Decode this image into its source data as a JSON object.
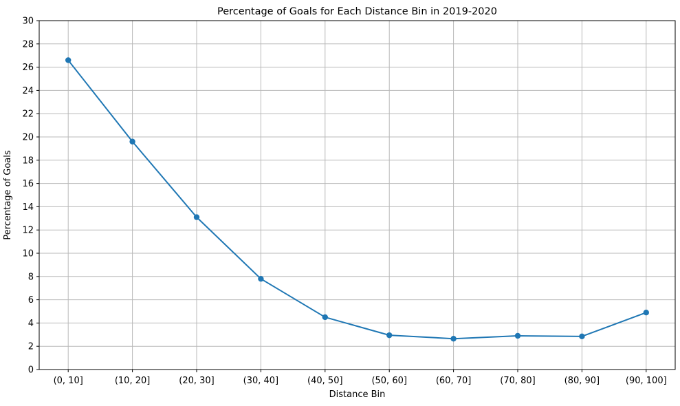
{
  "chart_data": {
    "type": "line",
    "title": "Percentage of Goals for Each Distance Bin in 2019-2020",
    "xlabel": "Distance Bin",
    "ylabel": "Percentage of Goals",
    "categories": [
      "(0, 10]",
      "(10, 20]",
      "(20, 30]",
      "(30, 40]",
      "(40, 50]",
      "(50, 60]",
      "(60, 70]",
      "(70, 80]",
      "(80, 90]",
      "(90, 100]"
    ],
    "series": [
      {
        "name": "percentage_of_goals",
        "values": [
          26.6,
          19.6,
          13.1,
          7.8,
          4.5,
          2.95,
          2.65,
          2.9,
          2.85,
          4.9
        ]
      }
    ],
    "ylim": [
      0,
      30
    ],
    "yticks": [
      0,
      2,
      4,
      6,
      8,
      10,
      12,
      14,
      16,
      18,
      20,
      22,
      24,
      26,
      28,
      30
    ],
    "grid": true,
    "legend": "none",
    "colors": {
      "line": "#1f77b4",
      "marker": "#1f77b4",
      "grid": "#b8b8b8",
      "spine": "#000000",
      "background": "#ffffff",
      "text": "#000000"
    }
  }
}
